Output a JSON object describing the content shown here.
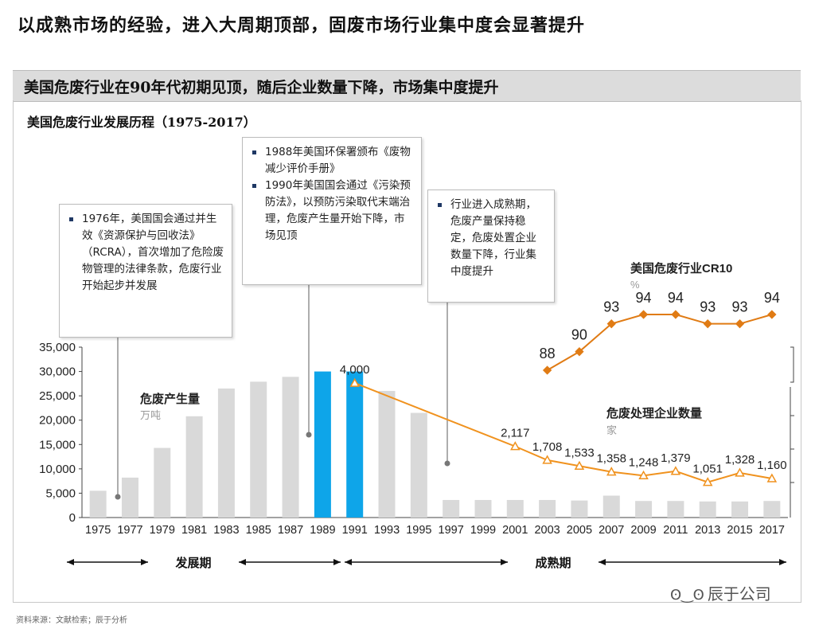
{
  "title": "以成熟市场的经验，进入大周期顶部，固废市场行业集中度会显著提升",
  "banner": "美国危废行业在90年代初期见顶，随后企业数量下降，市场集中度提升",
  "source": "资料来源：文献检索；辰于分析",
  "watermark": "辰于公司",
  "callouts": {
    "c1976": [
      "1976年，美国国会通过并生效《资源保护与回收法》（RCRA），首次增加了危险废物管理的法律条款，危废行业开始起步并发展"
    ],
    "c1988": [
      "1988年美国环保署颁布《废物减少评价手册》",
      "1990年美国国会通过《污染预防法》，以预防污染取代末端治理，危废产生量开始下降，市场见顶"
    ],
    "c1997": [
      "行业进入成熟期，危废产量保持稳定，危废处置企业数量下降，行业集中度提升"
    ]
  },
  "chart_data": [
    {
      "type": "bar",
      "title": "美国危废行业发展历程（1975-2017）",
      "series_label": "危废产生量",
      "unit": "万吨",
      "categories": [
        "1975",
        "1977",
        "1979",
        "1981",
        "1983",
        "1985",
        "1987",
        "1989",
        "1991",
        "1993",
        "1995",
        "1997",
        "1999",
        "2001",
        "2003",
        "2005",
        "2007",
        "2009",
        "2011",
        "2013",
        "2015",
        "2017"
      ],
      "values": [
        5500,
        8200,
        14300,
        20800,
        26500,
        27900,
        28900,
        30000,
        30000,
        26000,
        21500,
        3600,
        3600,
        3600,
        3600,
        3500,
        4500,
        3400,
        3400,
        3300,
        3300,
        3400
      ],
      "highlight": [
        "1989",
        "1991"
      ],
      "ylim": [
        0,
        35000
      ],
      "yticks": [
        "0",
        "5,000",
        "10,000",
        "15,000",
        "20,000",
        "25,000",
        "30,000",
        "35,000"
      ],
      "colors": {
        "bar": "#d9d9d9",
        "highlight": "#0ea5e9"
      }
    },
    {
      "type": "line",
      "series_label": "危废处理企业数量",
      "unit": "家",
      "x": [
        "1991",
        "2001",
        "2003",
        "2005",
        "2007",
        "2009",
        "2011",
        "2013",
        "2015",
        "2017"
      ],
      "values": [
        4000,
        2117,
        1708,
        1533,
        1358,
        1248,
        1379,
        1051,
        1328,
        1160
      ],
      "labels": [
        "4,000",
        "2,117",
        "1,708",
        "1,533",
        "1,358",
        "1,248",
        "1,379",
        "1,051",
        "1,328",
        "1,160"
      ],
      "color": "#f0921e"
    },
    {
      "type": "line",
      "series_label": "美国危废行业CR10",
      "unit": "%",
      "x": [
        "2003",
        "2005",
        "2007",
        "2009",
        "2011",
        "2013",
        "2015",
        "2017"
      ],
      "values": [
        88,
        90,
        93,
        94,
        94,
        93,
        93,
        94
      ],
      "color": "#e07b14"
    }
  ],
  "phases": {
    "development": "发展期",
    "mature": "成熟期"
  }
}
